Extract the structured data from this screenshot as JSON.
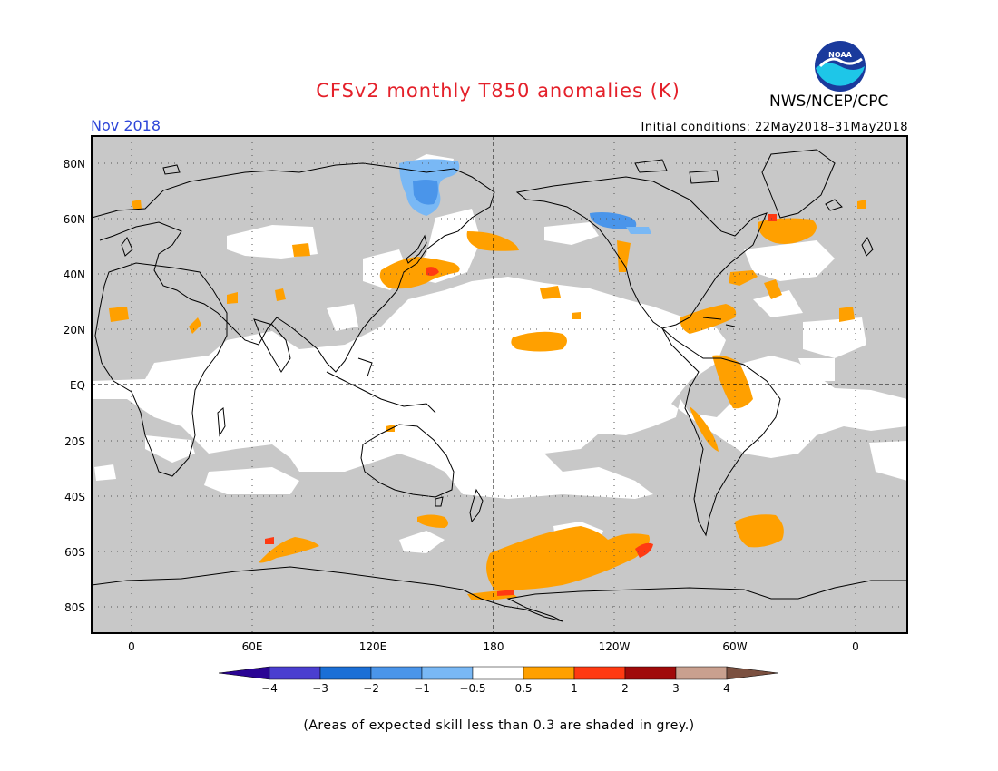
{
  "header": {
    "title": "CFSv2 monthly T850 anomalies (K)",
    "agency": "NWS/NCEP/CPC",
    "logo_text": "NOAA",
    "valid_month": "Nov 2018",
    "initial_conditions": "Initial conditions: 22May2018–31May2018"
  },
  "map": {
    "lat_labels": [
      "80N",
      "60N",
      "40N",
      "20N",
      "EQ",
      "20S",
      "40S",
      "60S",
      "80S"
    ],
    "lon_labels": [
      "0",
      "60E",
      "120E",
      "180",
      "120W",
      "60W",
      "0"
    ],
    "colors": {
      "low_skill_grey": "#c8c8c8",
      "neutral": "#ffffff",
      "orange": "#ffa000",
      "red_orange": "#ff3a12",
      "light_blue": "#79b8f5",
      "mid_blue": "#4a95ea"
    }
  },
  "colorbar": {
    "levels": [
      "−4",
      "−3",
      "−2",
      "−1",
      "−0.5",
      "0.5",
      "1",
      "2",
      "3",
      "4"
    ],
    "colors": [
      "#2a0494",
      "#4a3ed0",
      "#1b6fd6",
      "#4a95ea",
      "#79b8f5",
      "#ffffff",
      "#ffa000",
      "#ff3a12",
      "#a00a0a",
      "#c9a08f",
      "#7b5040"
    ]
  },
  "footer": {
    "note": "(Areas of expected skill less than 0.3 are shaded in grey.)"
  }
}
